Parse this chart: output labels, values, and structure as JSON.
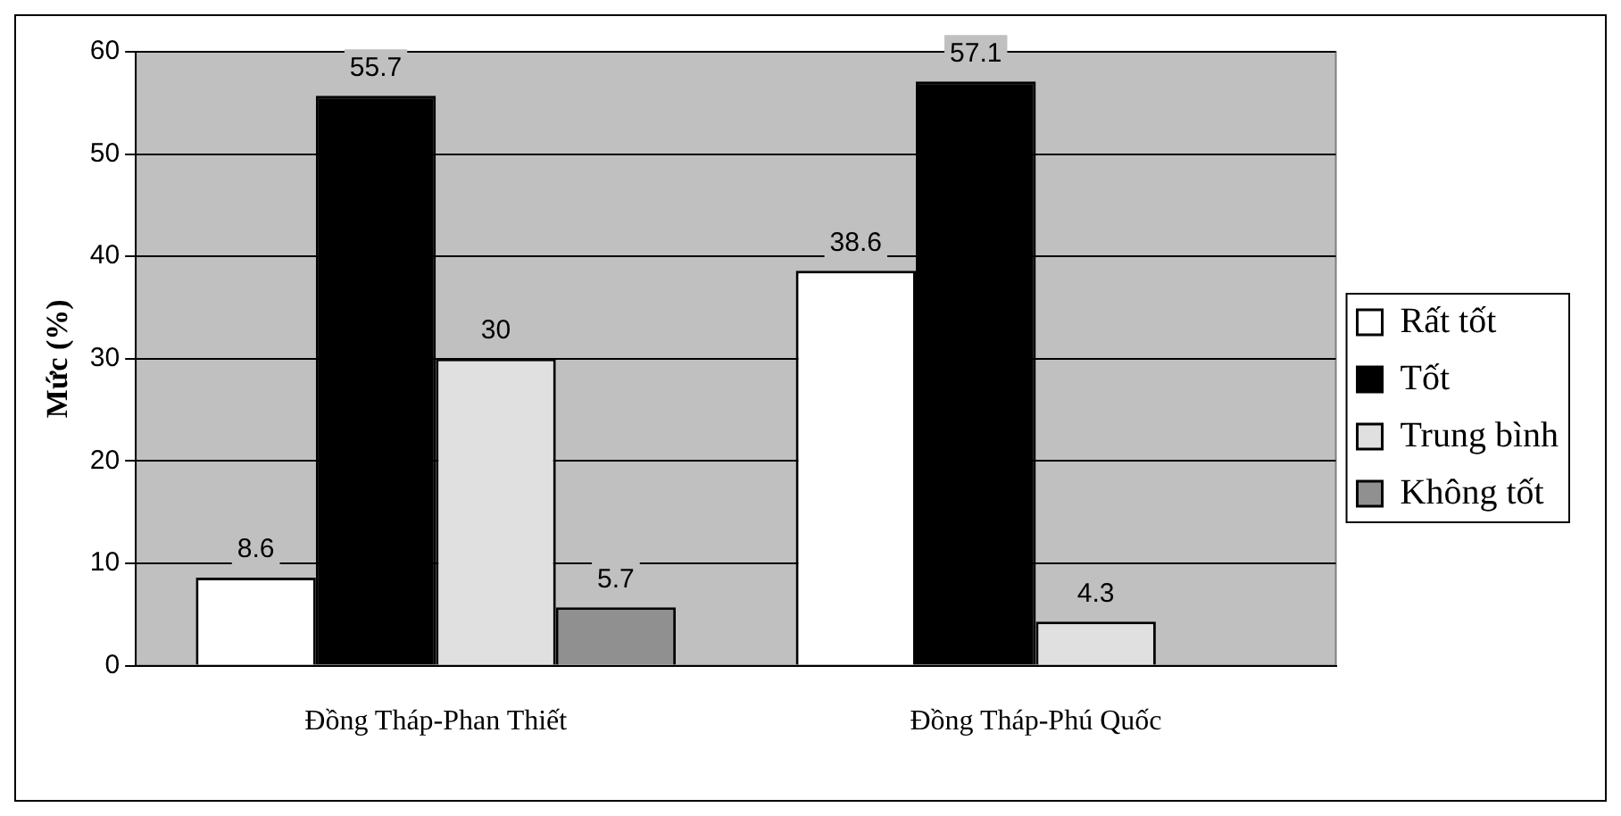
{
  "chart_data": {
    "type": "bar",
    "ylabel": "Mức (%)",
    "categories": [
      "Đồng Tháp-Phan Thiết",
      "Đồng Tháp-Phú Quốc"
    ],
    "series": [
      {
        "name": "Rất tốt",
        "color": "#ffffff",
        "values": [
          8.6,
          38.6
        ]
      },
      {
        "name": "Tốt",
        "color": "#000000",
        "values": [
          55.7,
          57.1
        ]
      },
      {
        "name": "Trung bình",
        "color": "#e0e0e0",
        "values": [
          30,
          4.3
        ]
      },
      {
        "name": "Không tốt",
        "color": "#909090",
        "values": [
          5.7,
          null
        ]
      }
    ],
    "ylim": [
      0,
      60
    ],
    "yticks": [
      0,
      10,
      20,
      30,
      40,
      50,
      60
    ],
    "grid": "y",
    "legend": "right",
    "data_labels": true
  }
}
